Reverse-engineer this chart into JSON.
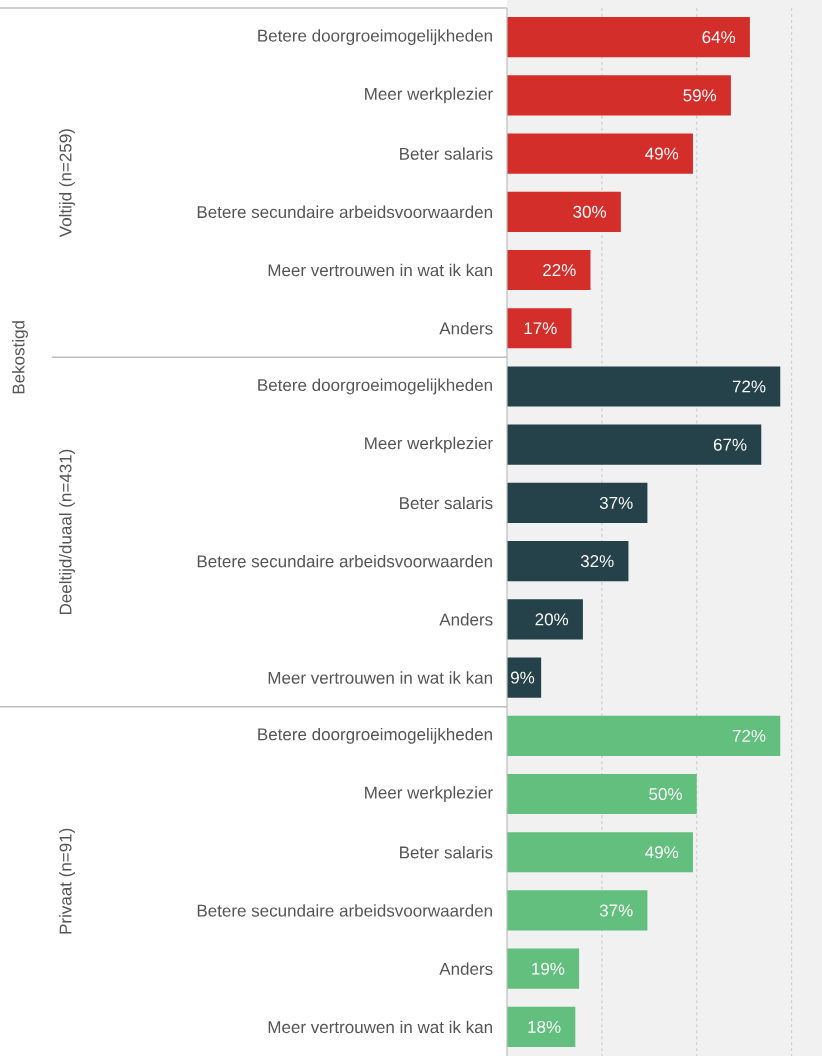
{
  "chart_data": {
    "type": "bar",
    "orientation": "horizontal",
    "categories": [
      "Betere doorgroeimogelijkheden",
      "Meer werkplezier",
      "Beter salaris",
      "Betere secundaire arbeidsvoorwaarden",
      "Meer vertrouwen in wat ik kan",
      "Anders",
      "Betere doorgroeimogelijkheden",
      "Meer werkplezier",
      "Beter salaris",
      "Betere secundaire arbeidsvoorwaarden",
      "Anders",
      "Meer vertrouwen in wat ik kan",
      "Betere doorgroeimogelijkheden",
      "Meer werkplezier",
      "Beter salaris",
      "Betere secundaire arbeidsvoorwaarden",
      "Anders",
      "Meer vertrouwen in wat ik kan"
    ],
    "values": [
      64,
      59,
      49,
      30,
      22,
      17,
      72,
      67,
      37,
      32,
      20,
      9,
      72,
      50,
      49,
      37,
      19,
      18
    ],
    "value_labels": [
      "64%",
      "59%",
      "49%",
      "30%",
      "22%",
      "17%",
      "72%",
      "67%",
      "37%",
      "32%",
      "20%",
      "9%",
      "72%",
      "50%",
      "49%",
      "37%",
      "19%",
      "18%"
    ],
    "colors": [
      "#d42e2b",
      "#d42e2b",
      "#d42e2b",
      "#d42e2b",
      "#d42e2b",
      "#d42e2b",
      "#25424a",
      "#25424a",
      "#25424a",
      "#25424a",
      "#25424a",
      "#25424a",
      "#62bf7e",
      "#62bf7e",
      "#62bf7e",
      "#62bf7e",
      "#62bf7e",
      "#62bf7e"
    ],
    "xlim": [
      0,
      83
    ],
    "xticks": [
      {
        "value": 25,
        "label": null
      },
      {
        "value": 50,
        "label": null
      },
      {
        "value": 75,
        "label": null
      }
    ],
    "grid": "x",
    "tick_labels": "y",
    "annotations": [
      "Bekostigd",
      "Voltijd (n=259)",
      "Deeltijd/duaal (n=431)",
      "Privaat (n=91)"
    ]
  }
}
